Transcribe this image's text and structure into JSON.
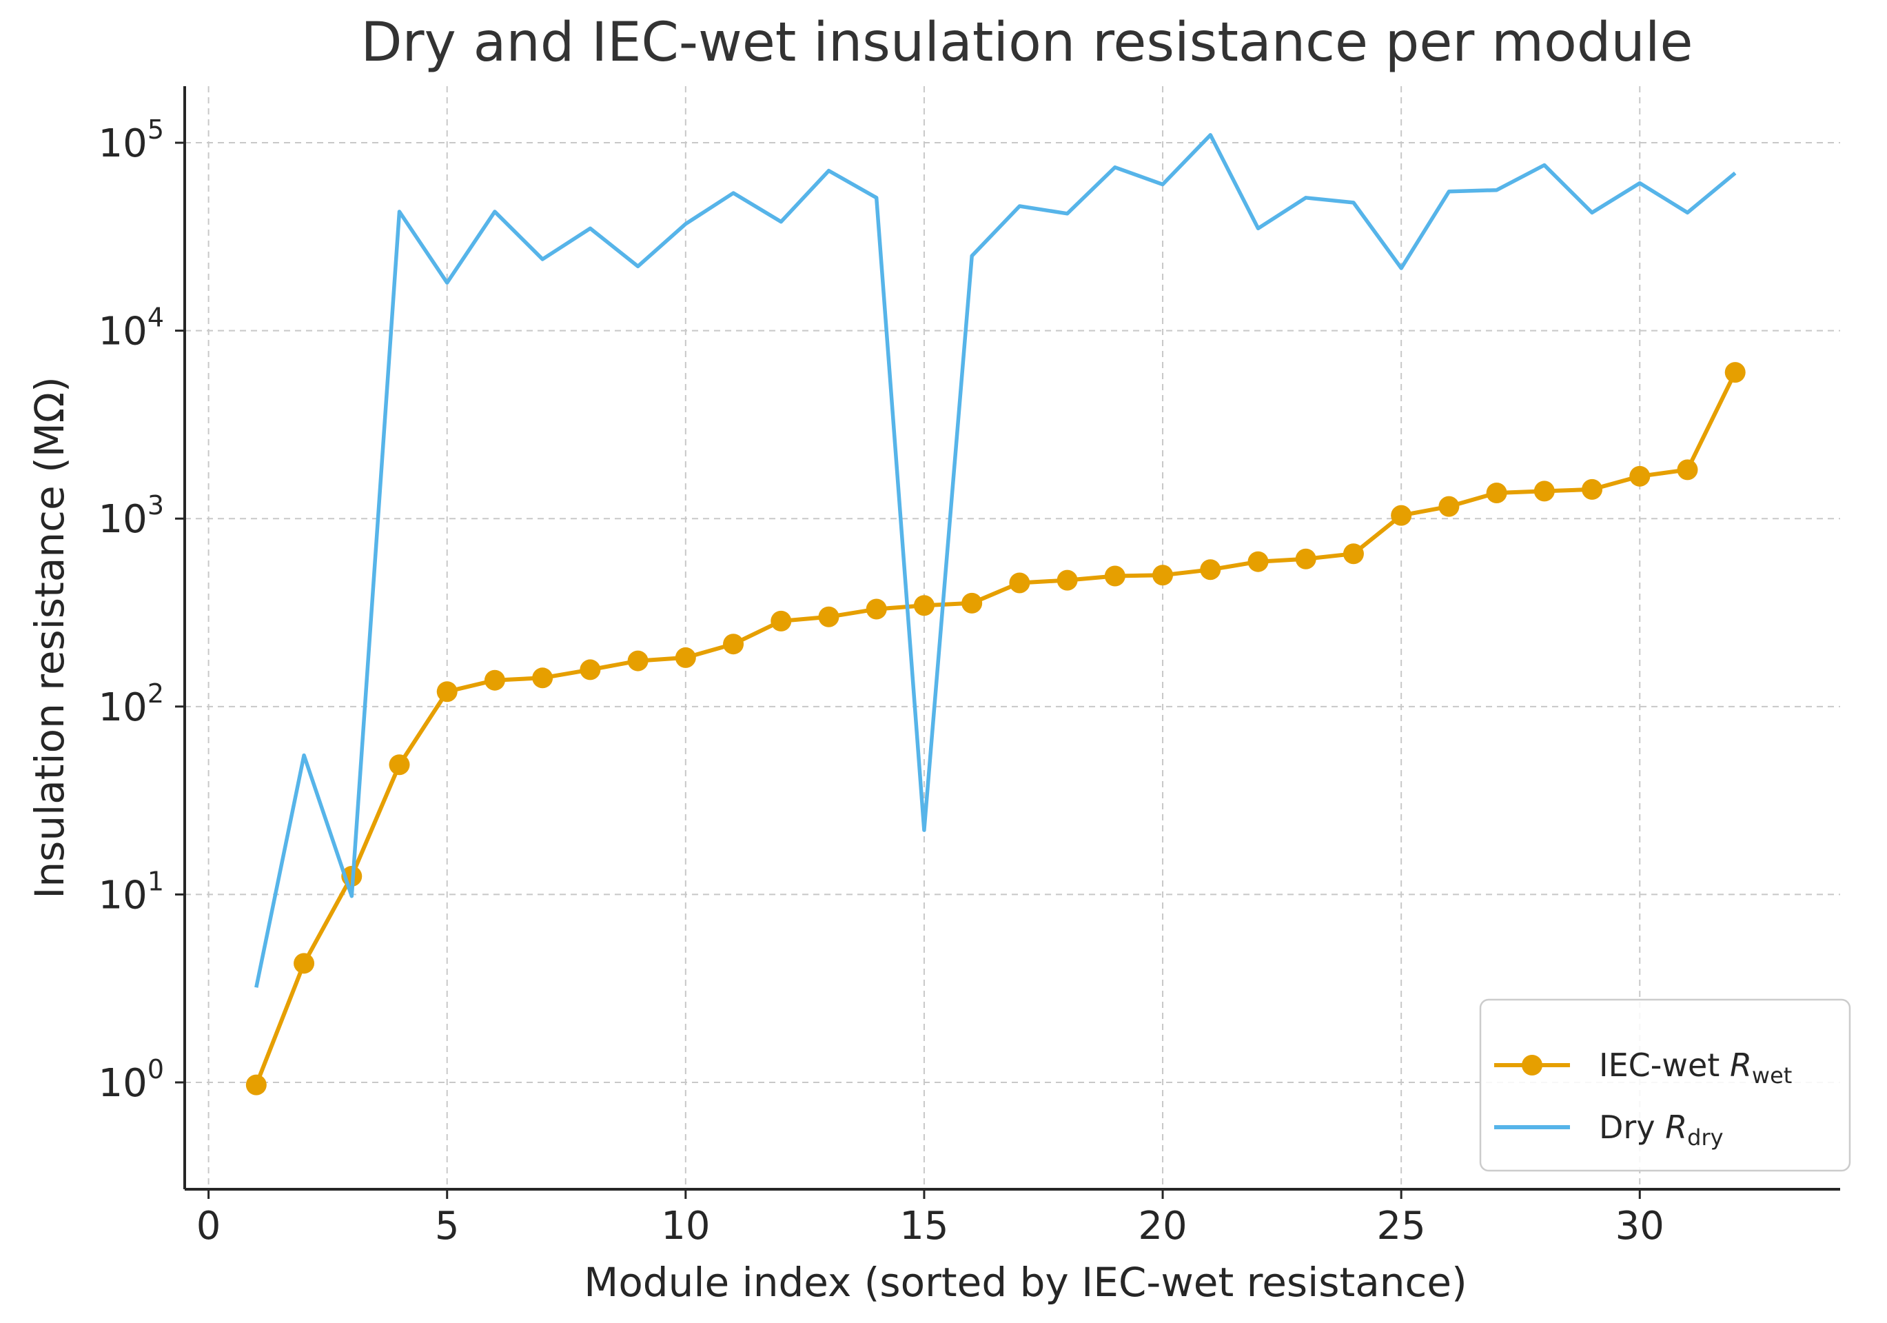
{
  "chart_data": {
    "type": "line",
    "title": "Dry and IEC-wet insulation resistance per module",
    "xlabel": "Module index (sorted by IEC-wet resistance)",
    "ylabel": "Insulation resistance (MΩ)",
    "yscale": "log",
    "xlim": [
      -0.5,
      34.2
    ],
    "ylim": [
      0.27,
      200000
    ],
    "grid": true,
    "x_ticks": [
      0,
      5,
      10,
      15,
      20,
      25,
      30
    ],
    "y_ticks": [
      {
        "value": 1,
        "base": "10",
        "exp": "0"
      },
      {
        "value": 10,
        "base": "10",
        "exp": "1"
      },
      {
        "value": 100,
        "base": "10",
        "exp": "2"
      },
      {
        "value": 1000,
        "base": "10",
        "exp": "3"
      },
      {
        "value": 10000,
        "base": "10",
        "exp": "4"
      },
      {
        "value": 100000,
        "base": "10",
        "exp": "5"
      }
    ],
    "x": [
      1,
      2,
      3,
      4,
      5,
      6,
      7,
      8,
      9,
      10,
      11,
      12,
      13,
      14,
      15,
      16,
      17,
      18,
      19,
      20,
      21,
      22,
      23,
      24,
      25,
      26,
      27,
      28,
      29,
      30,
      31,
      32
    ],
    "series": [
      {
        "name": "IEC-wet R_wet",
        "legend_main": "IEC-wet ",
        "legend_italic": "R",
        "legend_sub": "wet",
        "color": "#E69F00",
        "marker": "circle",
        "values": [
          0.97,
          4.3,
          12.5,
          49,
          120,
          138,
          142,
          157,
          175,
          182,
          215,
          285,
          300,
          330,
          345,
          355,
          455,
          470,
          495,
          500,
          535,
          590,
          610,
          650,
          1040,
          1160,
          1370,
          1400,
          1430,
          1680,
          1820,
          6000
        ]
      },
      {
        "name": "Dry R_dry",
        "legend_main": "Dry ",
        "legend_italic": "R",
        "legend_sub": "dry",
        "color": "#56B4E9",
        "marker": "none",
        "values": [
          3.2,
          55,
          9.8,
          43000,
          18000,
          43000,
          24000,
          35000,
          22000,
          37000,
          54000,
          38000,
          71000,
          51000,
          22,
          25000,
          46000,
          42000,
          74000,
          60000,
          110000,
          35000,
          51000,
          48000,
          21500,
          55000,
          56000,
          76000,
          42500,
          61000,
          42500,
          69000
        ]
      }
    ],
    "legend_position": "bottom-right"
  }
}
